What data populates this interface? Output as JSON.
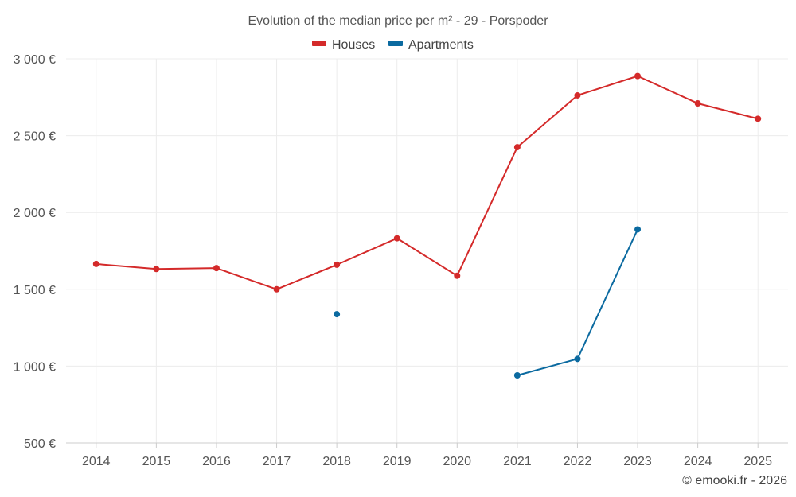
{
  "chart_data": {
    "type": "line",
    "title": "Evolution of the median price per m² - 29 - Porspoder",
    "xlabel": "",
    "ylabel": "",
    "categories": [
      "2014",
      "2015",
      "2016",
      "2017",
      "2018",
      "2019",
      "2020",
      "2021",
      "2022",
      "2023",
      "2024",
      "2025"
    ],
    "yticks": [
      500,
      1000,
      1500,
      2000,
      2500,
      3000
    ],
    "ytick_labels": [
      "500 €",
      "1 000 €",
      "1 500 €",
      "2 000 €",
      "2 500 €",
      "3 000 €"
    ],
    "ylim": [
      500,
      3000
    ],
    "grid": true,
    "legend_position": "top-center",
    "series": [
      {
        "name": "Houses",
        "color": "#d42a2a",
        "values": [
          1665,
          1632,
          1638,
          1500,
          1660,
          1832,
          1588,
          2425,
          2762,
          2888,
          2710,
          2610
        ]
      },
      {
        "name": "Apartments",
        "color": "#0b6aa0",
        "values": [
          null,
          null,
          null,
          null,
          1338,
          null,
          null,
          940,
          1047,
          1890,
          null,
          null
        ]
      }
    ]
  },
  "credit": "© emooki.fr - 2026"
}
